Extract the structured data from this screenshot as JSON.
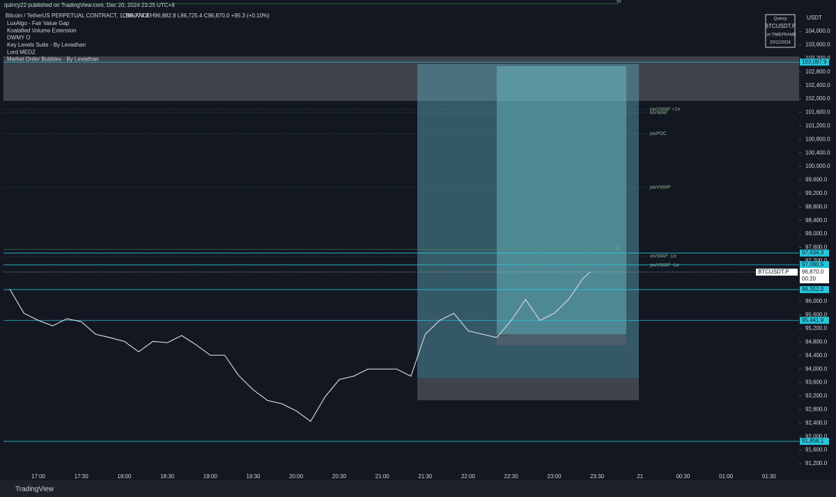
{
  "header": {
    "publisher": "quincy22 published on TradingView.com, Dec 20, 2024 23:25 UTC+8",
    "symbol": "Bitcoin / TetherUS PERPETUAL CONTRACT, 1, BINANCE",
    "ohlc": "O96,774.8  H96,882.8  L96,725.4  C96,870.0  +95.3 (+0.10%)"
  },
  "indicators": [
    "LuxAlgo - Fair Value Gap",
    "Koalafied Volume Extension",
    "DWMY O",
    "Key Levels Suite - By Leviathan",
    "Lord MEDZ",
    "Market Order Bubbles - By Leviathan"
  ],
  "watermark": [
    "Quincy",
    "BTCUSDT.P",
    "1m TIMEFRAME",
    "20/12/2024"
  ],
  "currency": "USDT",
  "footer": "TradingView",
  "chart_data": {
    "type": "line",
    "ylim": [
      90994,
      104928
    ],
    "yticks": [
      {
        "value": 91200,
        "label": "91,200.0"
      },
      {
        "value": 91600,
        "label": "91,600.0"
      },
      {
        "value": 92000,
        "label": "92,000.0"
      },
      {
        "value": 92400,
        "label": "92,400.0"
      },
      {
        "value": 92800,
        "label": "92,800.0"
      },
      {
        "value": 93200,
        "label": "93,200.0"
      },
      {
        "value": 93600,
        "label": "93,600.0"
      },
      {
        "value": 94000,
        "label": "94,000.0"
      },
      {
        "value": 94400,
        "label": "94,400.0"
      },
      {
        "value": 94800,
        "label": "94,800.0"
      },
      {
        "value": 95200,
        "label": "95,200.0"
      },
      {
        "value": 95600,
        "label": "95,600.0"
      },
      {
        "value": 96000,
        "label": "96,000.0"
      },
      {
        "value": 97200,
        "label": "97,200.0"
      },
      {
        "value": 97600,
        "label": "97,600.0"
      },
      {
        "value": 98000,
        "label": "98,000.0"
      },
      {
        "value": 98400,
        "label": "98,400.0"
      },
      {
        "value": 98800,
        "label": "98,800.0"
      },
      {
        "value": 99200,
        "label": "99,200.0"
      },
      {
        "value": 99600,
        "label": "99,600.0"
      },
      {
        "value": 100000,
        "label": "100,000.0"
      },
      {
        "value": 100400,
        "label": "100,400.0"
      },
      {
        "value": 100800,
        "label": "100,800.0"
      },
      {
        "value": 101200,
        "label": "101,200.0"
      },
      {
        "value": 101600,
        "label": "101,600.0"
      },
      {
        "value": 102000,
        "label": "102,000.0"
      },
      {
        "value": 102400,
        "label": "102,400.0"
      },
      {
        "value": 102800,
        "label": "102,800.0"
      },
      {
        "value": 103200,
        "label": "103,200.0"
      },
      {
        "value": 103600,
        "label": "103,600.0"
      },
      {
        "value": 104000,
        "label": "104,000.0"
      }
    ],
    "xticks": [
      "17:00",
      "17:30",
      "18:00",
      "18:30",
      "19:00",
      "19:30",
      "20:00",
      "20:30",
      "21:00",
      "21:30",
      "22:00",
      "22:30",
      "23:00",
      "23:30",
      "21",
      "00:30",
      "01:00",
      "01:30"
    ],
    "series": [
      {
        "name": "BTCUSDT.P",
        "color": "#d1d4dc",
        "x": [
          "16:40",
          "16:50",
          "17:00",
          "17:10",
          "17:20",
          "17:30",
          "17:40",
          "17:50",
          "18:00",
          "18:10",
          "18:20",
          "18:30",
          "18:40",
          "18:50",
          "19:00",
          "19:10",
          "19:20",
          "19:30",
          "19:40",
          "19:50",
          "20:00",
          "20:10",
          "20:20",
          "20:30",
          "20:40",
          "20:50",
          "21:00",
          "21:10",
          "21:20",
          "21:30",
          "21:40",
          "21:50",
          "22:00",
          "22:10",
          "22:20",
          "22:30",
          "22:40",
          "22:50",
          "23:00",
          "23:10",
          "23:20",
          "23:25"
        ],
        "values": [
          96370,
          95650,
          95440,
          95280,
          95490,
          95400,
          95030,
          94930,
          94820,
          94510,
          94820,
          94780,
          94990,
          94720,
          94410,
          94410,
          93800,
          93380,
          93070,
          92970,
          92760,
          92450,
          93170,
          93690,
          93790,
          94000,
          94000,
          94000,
          93790,
          95030,
          95440,
          95650,
          95130,
          95030,
          94930,
          95440,
          96060,
          95440,
          95650,
          96060,
          96680,
          96870
        ]
      }
    ],
    "current": {
      "tag": "BTCUSDT.P",
      "value": 96870,
      "label": "96,870.0",
      "countdown": "00:20"
    },
    "levels": [
      {
        "value": 103087.9,
        "label": "103,087.9"
      },
      {
        "value": 97434.3,
        "label": "97,434.3"
      },
      {
        "value": 97090.5,
        "label": "97,090.5"
      },
      {
        "value": 96352,
        "label": "96,352.0"
      },
      {
        "value": 95441.9,
        "label": "95,441.9"
      },
      {
        "value": 91858.1,
        "label": "91,858.1"
      }
    ],
    "annotations": [
      {
        "text": "W",
        "value": 104820
      },
      {
        "text": "pwVWAP +1σ",
        "value": 101690
      },
      {
        "text": "wVWAP",
        "value": 101590
      },
      {
        "text": "pwPOC",
        "value": 100970
      },
      {
        "text": "pwVWAP",
        "value": 99380
      },
      {
        "text": "D",
        "value": 97540
      },
      {
        "text": "wVWAP -1σ",
        "value": 97340
      },
      {
        "text": "pwVWAP -1σ",
        "value": 97070
      }
    ]
  }
}
